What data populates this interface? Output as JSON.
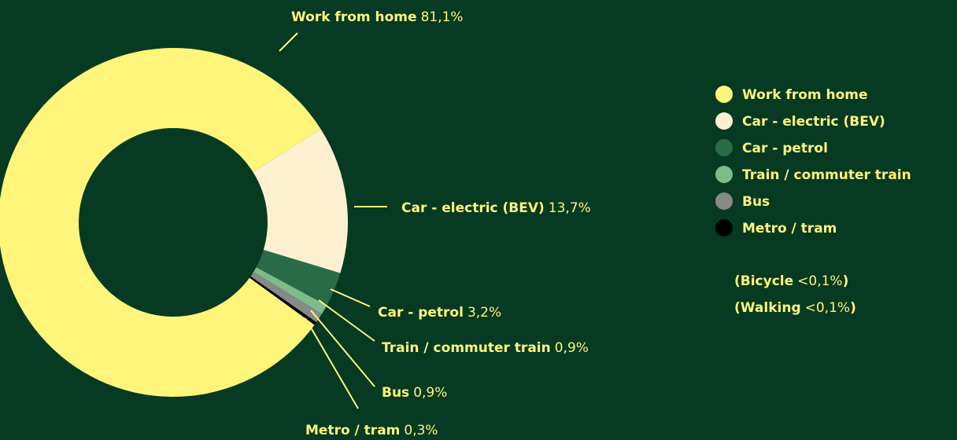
{
  "chart_data": {
    "type": "pie",
    "donut": true,
    "categories": [
      "Work from home",
      "Car - electric (BEV)",
      "Car - petrol",
      "Train / commuter train",
      "Bus",
      "Metro / tram"
    ],
    "values": [
      81.1,
      13.7,
      3.2,
      0.9,
      0.9,
      0.3
    ],
    "value_labels": [
      "81,1%",
      "13,7%",
      "3,2%",
      "0,9%",
      "0,9%",
      "0,3%"
    ],
    "colors": [
      "#fff57a",
      "#fdf0d0",
      "#2a6b47",
      "#7dbb8a",
      "#888a87",
      "#000000"
    ],
    "legend": "right",
    "notes": [
      {
        "text": [
          "(Bicycle",
          "<0,1%",
          ")"
        ]
      },
      {
        "text": [
          "(Walking",
          "<0,1%",
          ")"
        ]
      }
    ]
  }
}
